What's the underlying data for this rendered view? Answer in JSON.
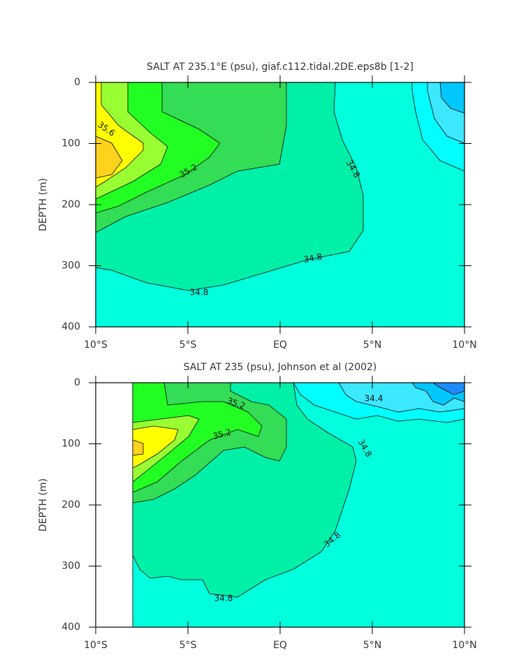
{
  "chart_data": [
    {
      "type": "contour",
      "title": "SALT AT 235.1°E (psu), giaf.c112.tidal.2DE.eps8b [1-2]",
      "y_label": "DEPTH (m)",
      "xlim": [
        -10,
        10
      ],
      "ylim": [
        400,
        0
      ],
      "xticks": [
        {
          "value": -10,
          "label": "10°S"
        },
        {
          "value": -5,
          "label": "5°S"
        },
        {
          "value": 0,
          "label": "EQ"
        },
        {
          "value": 5,
          "label": "5°N"
        },
        {
          "value": 10,
          "label": "10°N"
        }
      ],
      "yticks": [
        0,
        100,
        200,
        300,
        400
      ],
      "levels": [
        34.0,
        34.2,
        34.4,
        34.6,
        34.8,
        35.0,
        35.2,
        35.4,
        35.6,
        35.8
      ],
      "colors": [
        "#1e8cff",
        "#00c8ff",
        "#3ce8ff",
        "#00ffff",
        "#00ffdc",
        "#00f0a8",
        "#33dd55",
        "#22ff22",
        "#99ff33",
        "#ffff00",
        "#ffd21e"
      ]
    },
    {
      "type": "contour",
      "title": "SALT AT 235 (psu), Johnson et al (2002)",
      "y_label": "DEPTH (m)",
      "xlim": [
        -10,
        10
      ],
      "ylim": [
        400,
        0
      ],
      "xticks": [
        {
          "value": -10,
          "label": "10°S"
        },
        {
          "value": -5,
          "label": "5°S"
        },
        {
          "value": 0,
          "label": "EQ"
        },
        {
          "value": 5,
          "label": "5°N"
        },
        {
          "value": 10,
          "label": "10°N"
        }
      ],
      "yticks": [
        0,
        100,
        200,
        300,
        400
      ],
      "levels": [
        34.0,
        34.2,
        34.4,
        34.6,
        34.8,
        35.0,
        35.2,
        35.4,
        35.6,
        35.8
      ],
      "colors": [
        "#1e8cff",
        "#00c8ff",
        "#3ce8ff",
        "#00ffff",
        "#00ffdc",
        "#00f0a8",
        "#33dd55",
        "#22ff22",
        "#99ff33",
        "#ffff00",
        "#ffd21e"
      ]
    }
  ]
}
